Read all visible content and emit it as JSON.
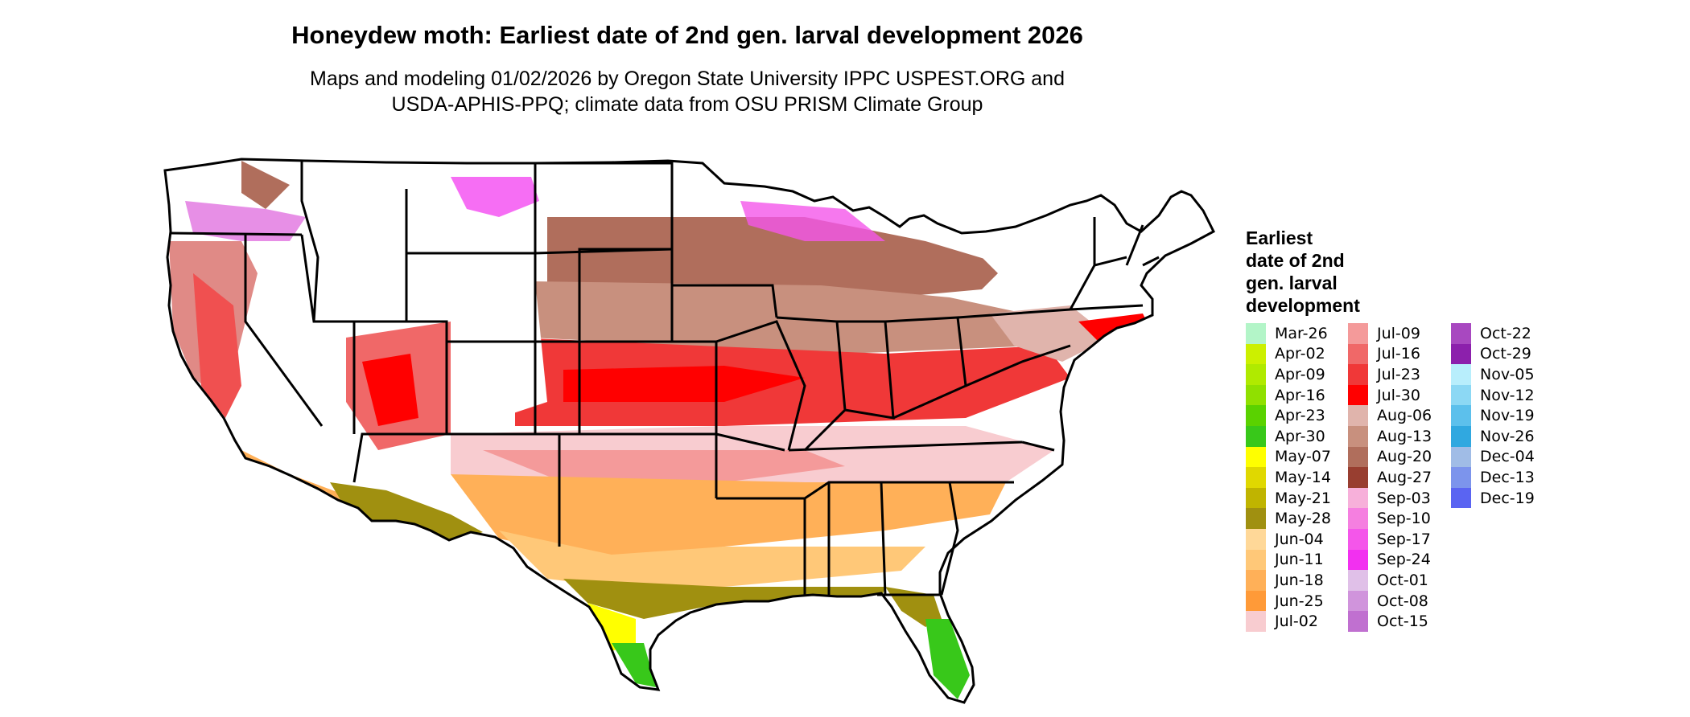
{
  "title": "Honeydew moth: Earliest date of 2nd gen. larval development 2026",
  "subtitle_line1": "Maps and modeling 01/02/2026 by Oregon State University IPPC USPEST.ORG and",
  "subtitle_line2": "USDA-APHIS-PPQ; climate data from OSU PRISM Climate Group",
  "legend": {
    "title": [
      "Earliest",
      "date of 2nd",
      "gen. larval",
      "development"
    ],
    "columns": [
      [
        {
          "label": "Mar-26",
          "color": "#b3f5c8"
        },
        {
          "label": "Apr-02",
          "color": "#ccf000"
        },
        {
          "label": "Apr-09",
          "color": "#b0ea00"
        },
        {
          "label": "Apr-16",
          "color": "#90e000"
        },
        {
          "label": "Apr-23",
          "color": "#5ad200"
        },
        {
          "label": "Apr-30",
          "color": "#38c81a"
        },
        {
          "label": "May-07",
          "color": "#ffff00"
        },
        {
          "label": "May-14",
          "color": "#e0d800"
        },
        {
          "label": "May-21",
          "color": "#c0b400"
        },
        {
          "label": "May-28",
          "color": "#a09010"
        },
        {
          "label": "Jun-04",
          "color": "#ffd898"
        },
        {
          "label": "Jun-11",
          "color": "#ffc878"
        },
        {
          "label": "Jun-18",
          "color": "#ffb058"
        },
        {
          "label": "Jun-25",
          "color": "#ff9a38"
        },
        {
          "label": "Jul-02",
          "color": "#f8ccd0"
        }
      ],
      [
        {
          "label": "Jul-09",
          "color": "#f49a9a"
        },
        {
          "label": "Jul-16",
          "color": "#f06868"
        },
        {
          "label": "Jul-23",
          "color": "#f03838"
        },
        {
          "label": "Jul-30",
          "color": "#ff0000"
        },
        {
          "label": "Aug-06",
          "color": "#e0b4ac"
        },
        {
          "label": "Aug-13",
          "color": "#c8907e"
        },
        {
          "label": "Aug-20",
          "color": "#b06e5c"
        },
        {
          "label": "Aug-27",
          "color": "#983e30"
        },
        {
          "label": "Sep-03",
          "color": "#f7b0da"
        },
        {
          "label": "Sep-10",
          "color": "#f57fe0"
        },
        {
          "label": "Sep-17",
          "color": "#f456ea"
        },
        {
          "label": "Sep-24",
          "color": "#f230f0"
        },
        {
          "label": "Oct-01",
          "color": "#e0c0e8"
        },
        {
          "label": "Oct-08",
          "color": "#d094dc"
        },
        {
          "label": "Oct-15",
          "color": "#c070d0"
        }
      ],
      [
        {
          "label": "Oct-22",
          "color": "#a848c0"
        },
        {
          "label": "Oct-29",
          "color": "#8c20ac"
        },
        {
          "label": "Nov-05",
          "color": "#b8eefc"
        },
        {
          "label": "Nov-12",
          "color": "#8cd8f4"
        },
        {
          "label": "Nov-19",
          "color": "#5cc0ec"
        },
        {
          "label": "Nov-26",
          "color": "#30a8e0"
        },
        {
          "label": "Dec-04",
          "color": "#a0bce6"
        },
        {
          "label": "Dec-13",
          "color": "#7c94ec"
        },
        {
          "label": "Dec-19",
          "color": "#5a64f2"
        }
      ]
    ]
  }
}
